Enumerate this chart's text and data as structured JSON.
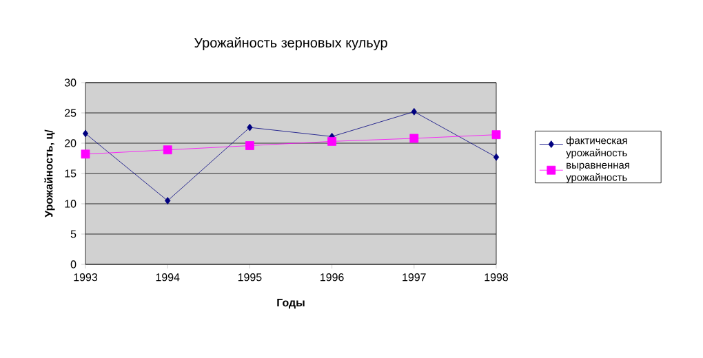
{
  "chart_data": {
    "type": "line",
    "title": "Урожайность зерновых кульур",
    "xlabel": "Годы",
    "ylabel": "Урожайность, ц/",
    "x": [
      1993,
      1994,
      1995,
      1996,
      1997,
      1998
    ],
    "series": [
      {
        "name": "фактическая урожайность",
        "color": "#000080",
        "marker": "diamond",
        "values": [
          21.6,
          10.5,
          22.6,
          21.1,
          25.2,
          17.7
        ]
      },
      {
        "name": "выравненная урожайность",
        "color": "#ff00ff",
        "marker": "square",
        "values": [
          18.2,
          18.9,
          19.6,
          20.3,
          20.8,
          21.4
        ]
      }
    ],
    "xlim": [
      1993,
      1998
    ],
    "xticks": [
      1993,
      1994,
      1995,
      1996,
      1997,
      1998
    ],
    "ylim": [
      0,
      30
    ],
    "yticks": [
      0,
      5,
      10,
      15,
      20,
      25,
      30
    ],
    "grid": "y",
    "legend": "right",
    "line_style": "solid"
  }
}
